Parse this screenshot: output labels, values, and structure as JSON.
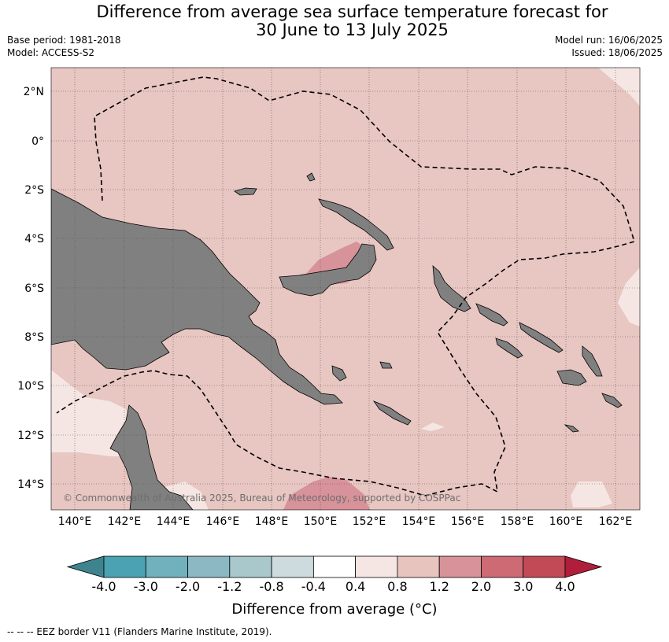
{
  "title_line1": "Difference from average sea surface temperature forecast for",
  "title_line2": "30 June to 13 July 2025",
  "base_period": "Base period: 1981-2018",
  "model": "Model: ACCESS-S2",
  "model_run": "Model run: 16/06/2025",
  "issued": "Issued: 18/06/2025",
  "copyright": "© Commonwealth of Australia 2025, Bureau of Meteorology, supported by COSPPac",
  "lon_ticks": [
    "140°E",
    "142°E",
    "144°E",
    "146°E",
    "148°E",
    "150°E",
    "152°E",
    "154°E",
    "156°E",
    "158°E",
    "160°E",
    "162°E"
  ],
  "lat_ticks": [
    "2°N",
    "0°",
    "2°S",
    "4°S",
    "6°S",
    "8°S",
    "10°S",
    "12°S",
    "14°S"
  ],
  "colorbar": {
    "title": "Difference from average (°C)",
    "labels": [
      "-4.0",
      "-3.0",
      "-2.0",
      "-1.2",
      "-0.8",
      "-0.4",
      "0.4",
      "0.8",
      "1.2",
      "2.0",
      "3.0",
      "4.0"
    ],
    "colors": [
      "#3e848e",
      "#4aa2b2",
      "#71b1be",
      "#8cb8c3",
      "#a9c8cc",
      "#cddbdf",
      "#ffffff",
      "#f5e6e3",
      "#e8c4bf",
      "#d8929a",
      "#cd6a74",
      "#c14a56",
      "#b01e3c"
    ]
  },
  "footer": "--  --  -- EEZ border V11 (Flanders Marine Institute, 2019)."
}
